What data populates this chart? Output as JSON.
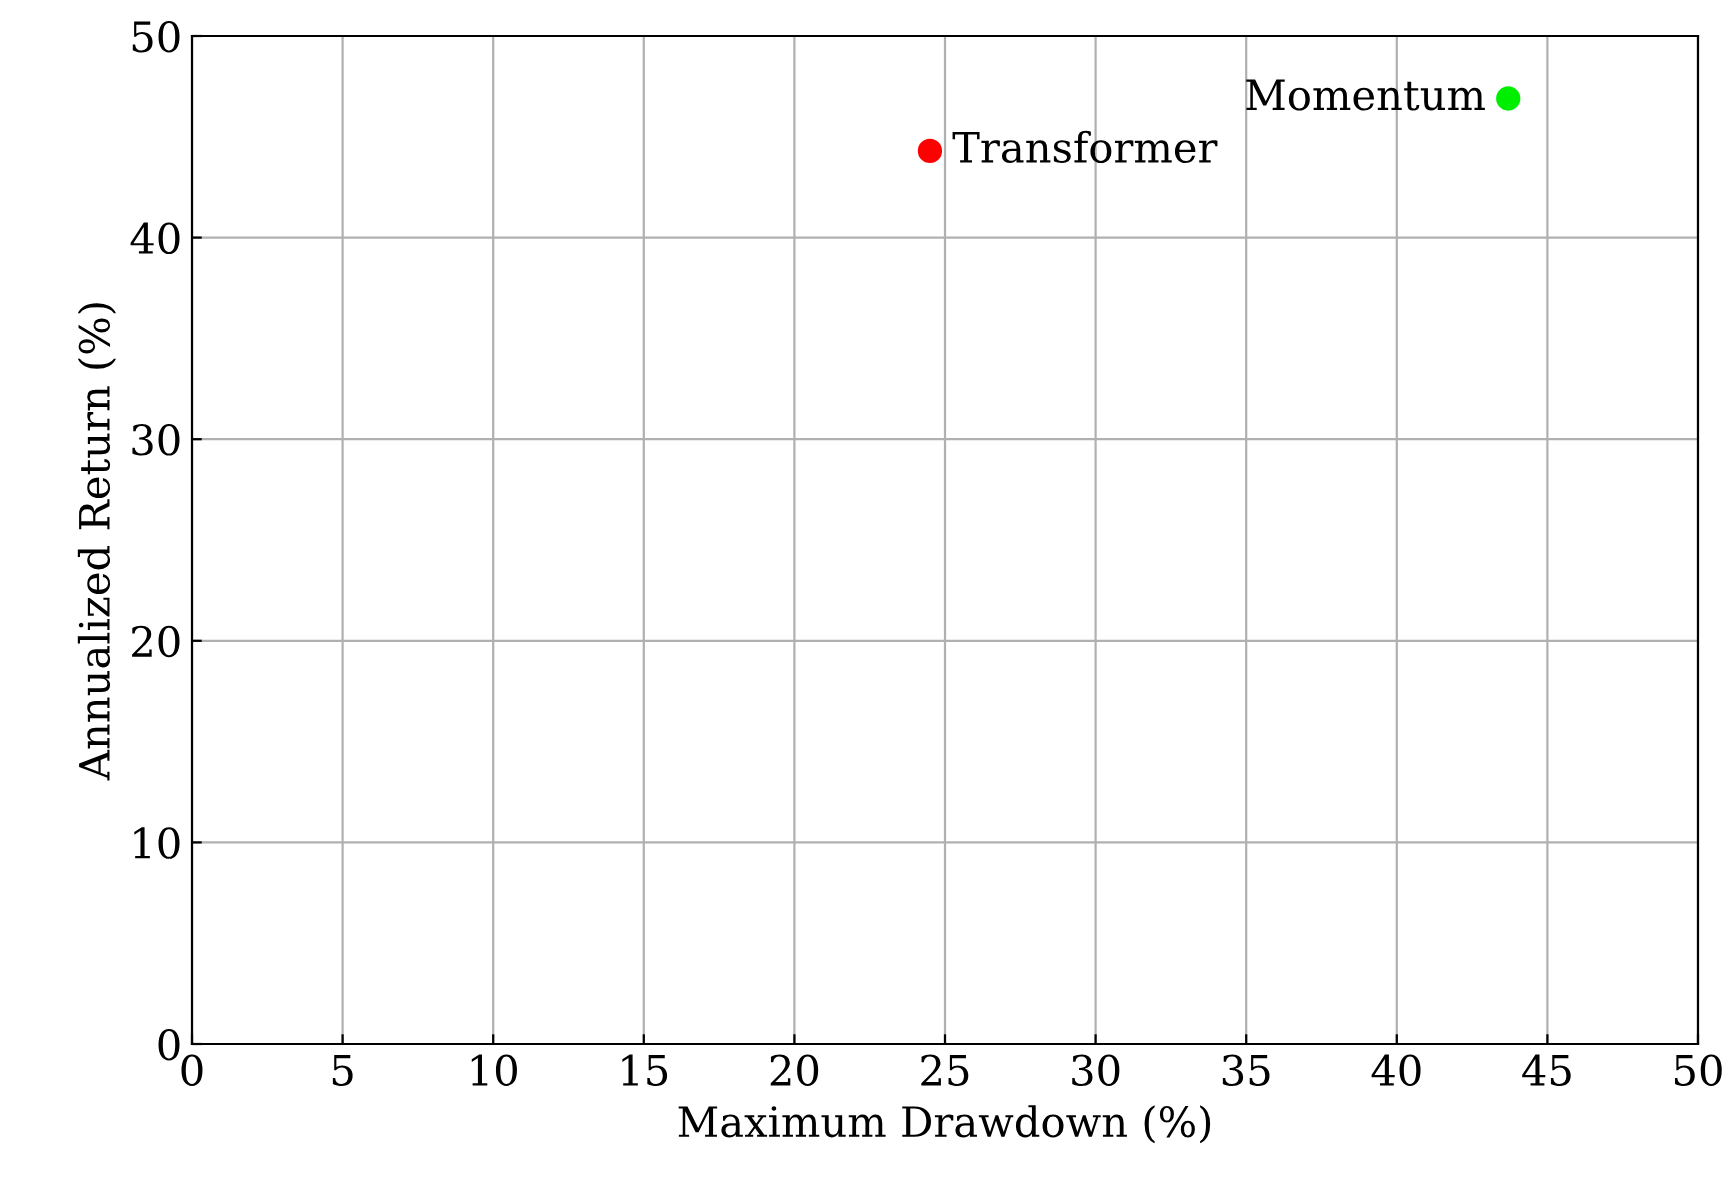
{
  "chart_data": {
    "type": "scatter",
    "xlabel": "Maximum Drawdown (%)",
    "ylabel": "Annualized Return (%)",
    "series": [
      {
        "name": "Transformer",
        "color": "#ff0000",
        "x": [
          24.5
        ],
        "values": [
          44.3
        ]
      },
      {
        "name": "Momentum",
        "color": "#00ee00",
        "x": [
          43.7
        ],
        "values": [
          46.9
        ]
      }
    ],
    "xlim": [
      0,
      50
    ],
    "xticks": [
      0,
      5,
      10,
      15,
      20,
      25,
      30,
      35,
      40,
      45,
      50
    ],
    "ylim": [
      0,
      50
    ],
    "yticks": [
      0,
      10,
      20,
      30,
      40,
      50
    ],
    "grid": true,
    "marker": "circle"
  }
}
